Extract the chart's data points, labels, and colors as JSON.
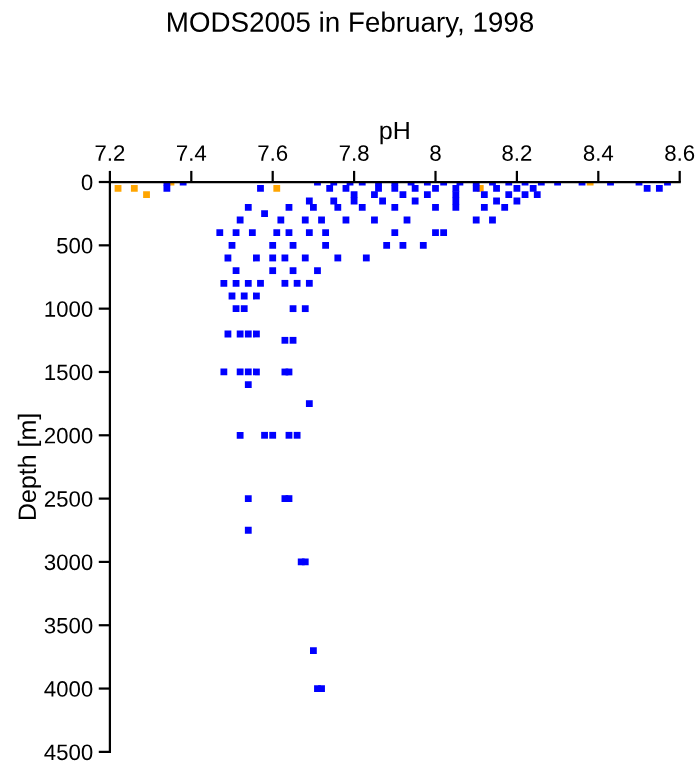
{
  "chart_data": {
    "type": "scatter",
    "title": "MODS2005 in February, 1998",
    "xlabel": "pH",
    "ylabel": "Depth [m]",
    "xlim": [
      7.2,
      8.6
    ],
    "xticks": [
      7.2,
      7.4,
      7.6,
      7.8,
      8,
      8.2,
      8.4,
      8.6
    ],
    "ylim": [
      4500,
      0
    ],
    "yticks": [
      0,
      500,
      1000,
      1500,
      2000,
      2500,
      3000,
      3500,
      4000,
      4500
    ],
    "grid": false,
    "marker": "square",
    "legend": false,
    "series": [
      {
        "color": "#ffa500",
        "x": [
          7.22,
          7.26,
          7.29,
          7.35,
          7.61,
          8.11,
          8.38
        ],
        "values": [
          50,
          50,
          100,
          0,
          50,
          50,
          0
        ]
      },
      {
        "color": "#0000ff",
        "x": [
          7.34,
          7.38,
          7.34,
          7.57,
          7.71,
          7.75,
          7.79,
          7.82,
          7.86,
          7.9,
          7.94,
          7.98,
          8.02,
          8.06,
          8.1,
          8.14,
          8.18,
          8.22,
          8.26,
          8.3,
          8.36,
          8.43,
          8.5,
          8.52,
          8.55,
          8.57,
          7.74,
          7.78,
          7.86,
          7.9,
          7.95,
          8.0,
          8.05,
          8.1,
          8.15,
          8.2,
          8.24,
          7.8,
          7.85,
          7.92,
          7.98,
          8.05,
          8.12,
          8.18,
          8.22,
          8.25,
          7.69,
          7.75,
          7.8,
          7.87,
          7.95,
          8.05,
          8.15,
          8.2,
          7.64,
          7.7,
          7.76,
          7.82,
          7.9,
          8.0,
          8.05,
          8.12,
          8.17,
          7.54,
          7.68,
          7.72,
          7.78,
          7.85,
          7.93,
          8.1,
          8.14,
          7.58,
          7.52,
          7.62,
          7.47,
          7.51,
          7.55,
          7.61,
          7.64,
          7.69,
          7.73,
          7.9,
          8.0,
          8.02,
          7.5,
          7.6,
          7.65,
          7.73,
          7.88,
          7.92,
          7.97,
          7.49,
          7.56,
          7.6,
          7.63,
          7.68,
          7.76,
          7.83,
          7.51,
          7.6,
          7.65,
          7.71,
          7.48,
          7.51,
          7.54,
          7.57,
          7.63,
          7.66,
          7.69,
          7.5,
          7.53,
          7.56,
          7.51,
          7.53,
          7.65,
          7.68,
          7.49,
          7.52,
          7.54,
          7.56,
          7.63,
          7.65,
          7.48,
          7.52,
          7.54,
          7.56,
          7.63,
          7.64,
          7.54,
          7.69,
          7.52,
          7.58,
          7.6,
          7.64,
          7.66,
          7.54,
          7.63,
          7.64,
          7.54,
          7.67,
          7.68,
          7.7,
          7.71,
          7.72
        ],
        "values": [
          0,
          0,
          50,
          50,
          0,
          0,
          0,
          0,
          0,
          0,
          0,
          0,
          0,
          0,
          0,
          0,
          0,
          0,
          0,
          0,
          0,
          0,
          0,
          50,
          50,
          0,
          50,
          50,
          50,
          50,
          50,
          50,
          50,
          50,
          50,
          50,
          50,
          100,
          100,
          100,
          100,
          100,
          100,
          100,
          100,
          100,
          150,
          150,
          150,
          150,
          150,
          150,
          150,
          150,
          200,
          200,
          200,
          200,
          200,
          200,
          200,
          200,
          200,
          200,
          300,
          300,
          300,
          300,
          300,
          300,
          300,
          250,
          300,
          300,
          400,
          400,
          400,
          400,
          400,
          400,
          400,
          400,
          400,
          400,
          500,
          500,
          500,
          500,
          500,
          500,
          500,
          600,
          600,
          600,
          600,
          600,
          600,
          600,
          700,
          700,
          700,
          700,
          800,
          800,
          800,
          800,
          800,
          800,
          800,
          900,
          900,
          900,
          1000,
          1000,
          1000,
          1000,
          1200,
          1200,
          1200,
          1200,
          1250,
          1250,
          1500,
          1500,
          1500,
          1500,
          1500,
          1500,
          1600,
          1750,
          2000,
          2000,
          2000,
          2000,
          2000,
          2500,
          2500,
          2500,
          2750,
          3000,
          3000,
          3700,
          4000,
          4000
        ]
      }
    ]
  }
}
